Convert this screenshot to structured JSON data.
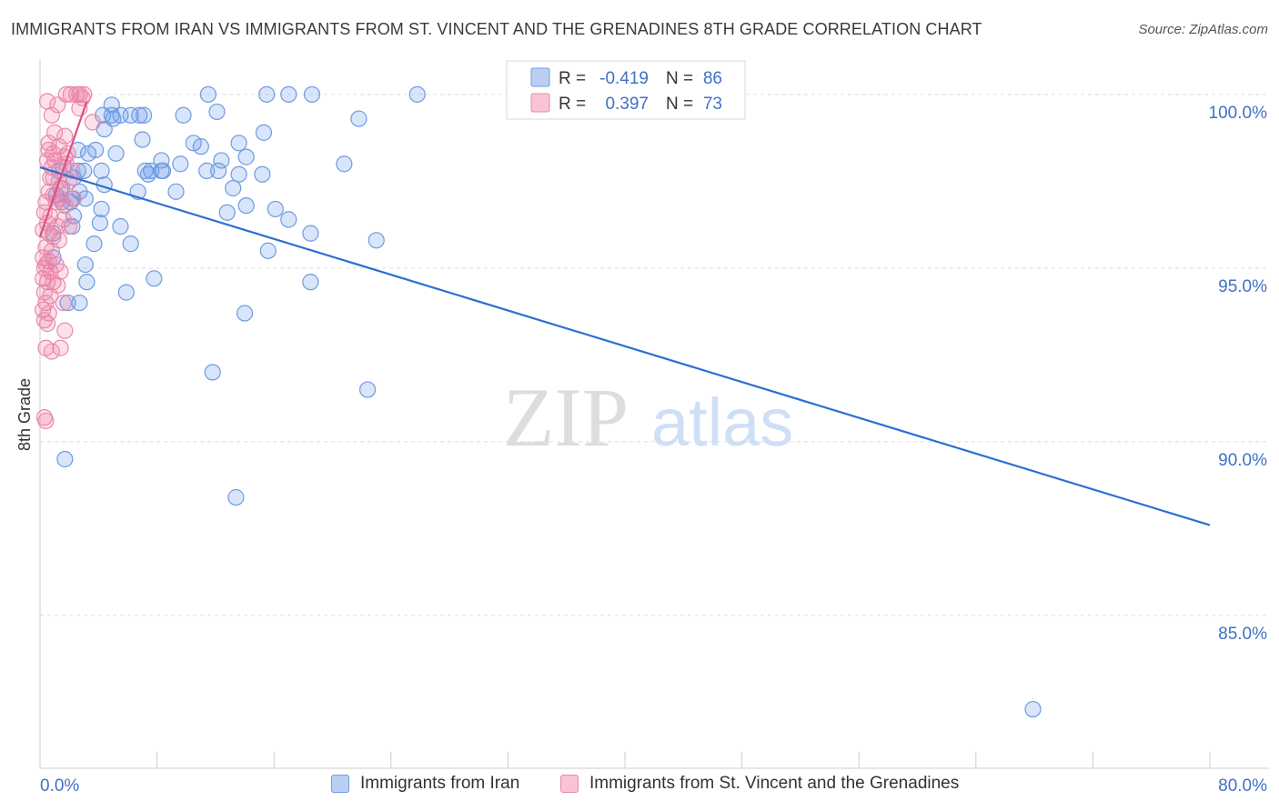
{
  "title": "IMMIGRANTS FROM IRAN VS IMMIGRANTS FROM ST. VINCENT AND THE GRENADINES 8TH GRADE CORRELATION CHART",
  "source": "Source: ZipAtlas.com",
  "watermark": {
    "zip": "ZIP",
    "atlas": "atlas"
  },
  "colors": {
    "iran_fill": "rgba(100,150,235,0.25)",
    "iran_stroke": "#6f9be0",
    "iran_line": "#2d6fcf",
    "svg_fill": "rgba(240,120,160,0.22)",
    "svg_stroke": "#e88aaa",
    "svg_line": "#e0507e",
    "axis_label": "#3f72c6",
    "grid": "#dcdcdc"
  },
  "legend": {
    "r_label": "R =",
    "n_label": "N =",
    "iran_r": "-0.419",
    "iran_n": "86",
    "svg_r": "0.397",
    "svg_n": "73"
  },
  "chart_data": {
    "type": "scatter",
    "title": "IMMIGRANTS FROM IRAN VS IMMIGRANTS FROM ST. VINCENT AND THE GRENADINES 8TH GRADE CORRELATION CHART",
    "ylabel": "8th Grade",
    "xlabel": "",
    "xlim": [
      0,
      80
    ],
    "ylim": [
      80.6,
      101.2
    ],
    "x_tick_labels": [
      {
        "value": 0,
        "label": "0.0%"
      },
      {
        "value": 80,
        "label": "80.0%"
      }
    ],
    "y_tick_labels": [
      {
        "value": 100,
        "label": "100.0%"
      },
      {
        "value": 95,
        "label": "95.0%"
      },
      {
        "value": 90,
        "label": "90.0%"
      },
      {
        "value": 85,
        "label": "85.0%"
      }
    ],
    "series": [
      {
        "name": "Immigrants from Iran",
        "trendline": [
          [
            0,
            97.9
          ],
          [
            80,
            87.6
          ]
        ],
        "points": [
          [
            11.5,
            100
          ],
          [
            15.5,
            100
          ],
          [
            17,
            100
          ],
          [
            18.6,
            100
          ],
          [
            25.8,
            100
          ],
          [
            4.9,
            99.7
          ],
          [
            12.1,
            99.5
          ],
          [
            4.3,
            99.4
          ],
          [
            4.9,
            99.4
          ],
          [
            5.0,
            99.3
          ],
          [
            5.5,
            99.4
          ],
          [
            6.8,
            99.4
          ],
          [
            7.1,
            99.4
          ],
          [
            9.8,
            99.4
          ],
          [
            21.8,
            99.3
          ],
          [
            4.4,
            99.0
          ],
          [
            15.3,
            98.9
          ],
          [
            7.0,
            98.7
          ],
          [
            10.5,
            98.6
          ],
          [
            11.0,
            98.5
          ],
          [
            13.6,
            98.6
          ],
          [
            2.6,
            98.4
          ],
          [
            3.8,
            98.4
          ],
          [
            5.2,
            98.3
          ],
          [
            3.3,
            98.3
          ],
          [
            14.1,
            98.2
          ],
          [
            12.4,
            98.1
          ],
          [
            8.3,
            98.1
          ],
          [
            20.8,
            98.0
          ],
          [
            1.6,
            97.9
          ],
          [
            1.3,
            97.8
          ],
          [
            2.6,
            97.8
          ],
          [
            3.0,
            97.8
          ],
          [
            4.2,
            97.8
          ],
          [
            7.2,
            97.8
          ],
          [
            7.6,
            97.8
          ],
          [
            8.4,
            97.8
          ],
          [
            11.4,
            97.8
          ],
          [
            12.2,
            97.8
          ],
          [
            13.6,
            97.7
          ],
          [
            15.2,
            97.7
          ],
          [
            2.3,
            97.6
          ],
          [
            7.4,
            97.7
          ],
          [
            8.3,
            97.8
          ],
          [
            4.4,
            97.4
          ],
          [
            1.4,
            97.3
          ],
          [
            2.7,
            97.2
          ],
          [
            6.7,
            97.2
          ],
          [
            9.3,
            97.2
          ],
          [
            13.2,
            97.3
          ],
          [
            1.1,
            97.1
          ],
          [
            2.2,
            97.0
          ],
          [
            3.1,
            97.0
          ],
          [
            1.5,
            96.9
          ],
          [
            2.1,
            96.9
          ],
          [
            4.2,
            96.7
          ],
          [
            14.1,
            96.8
          ],
          [
            16.1,
            96.7
          ],
          [
            12.8,
            96.6
          ],
          [
            2.3,
            96.5
          ],
          [
            17.0,
            96.4
          ],
          [
            4.1,
            96.3
          ],
          [
            2.2,
            96.2
          ],
          [
            5.5,
            96.2
          ],
          [
            18.5,
            96.0
          ],
          [
            0.9,
            96.0
          ],
          [
            23.0,
            95.8
          ],
          [
            3.7,
            95.7
          ],
          [
            6.2,
            95.7
          ],
          [
            15.6,
            95.5
          ],
          [
            3.1,
            95.1
          ],
          [
            0.9,
            95.3
          ],
          [
            7.8,
            94.7
          ],
          [
            18.5,
            94.6
          ],
          [
            3.2,
            94.6
          ],
          [
            5.9,
            94.3
          ],
          [
            2.7,
            94.0
          ],
          [
            1.9,
            94.0
          ],
          [
            14.0,
            93.7
          ],
          [
            11.8,
            92.0
          ],
          [
            22.4,
            91.5
          ],
          [
            1.7,
            89.5
          ],
          [
            13.4,
            88.4
          ],
          [
            67.9,
            82.3
          ],
          [
            6.2,
            99.4
          ],
          [
            9.6,
            98.0
          ]
        ]
      },
      {
        "name": "Immigrants from St. Vincent and the Grenadines",
        "trendline": [
          [
            0,
            95.9
          ],
          [
            3.2,
            99.8
          ]
        ],
        "points": [
          [
            1.8,
            100
          ],
          [
            2.1,
            100
          ],
          [
            2.5,
            100
          ],
          [
            2.7,
            100
          ],
          [
            3.0,
            100
          ],
          [
            2.9,
            99.9
          ],
          [
            0.5,
            99.8
          ],
          [
            1.2,
            99.7
          ],
          [
            2.7,
            99.6
          ],
          [
            0.8,
            99.4
          ],
          [
            3.6,
            99.2
          ],
          [
            1.0,
            98.9
          ],
          [
            1.7,
            98.8
          ],
          [
            0.6,
            98.6
          ],
          [
            1.3,
            98.5
          ],
          [
            0.9,
            98.3
          ],
          [
            1.9,
            98.3
          ],
          [
            0.5,
            98.1
          ],
          [
            1.0,
            98.1
          ],
          [
            1.7,
            98.2
          ],
          [
            0.8,
            97.9
          ],
          [
            2.2,
            97.8
          ],
          [
            0.7,
            97.6
          ],
          [
            1.3,
            97.5
          ],
          [
            2.0,
            97.5
          ],
          [
            0.6,
            97.2
          ],
          [
            0.9,
            97.1
          ],
          [
            1.4,
            97.0
          ],
          [
            2.3,
            97.0
          ],
          [
            0.4,
            96.9
          ],
          [
            1.1,
            96.9
          ],
          [
            1.7,
            96.8
          ],
          [
            0.3,
            96.6
          ],
          [
            0.7,
            96.5
          ],
          [
            1.6,
            96.4
          ],
          [
            0.5,
            96.3
          ],
          [
            2.0,
            96.2
          ],
          [
            0.6,
            96.0
          ],
          [
            0.9,
            95.9
          ],
          [
            1.3,
            95.8
          ],
          [
            0.4,
            95.6
          ],
          [
            0.8,
            95.5
          ],
          [
            0.2,
            95.3
          ],
          [
            0.6,
            95.2
          ],
          [
            1.1,
            95.1
          ],
          [
            0.3,
            95.0
          ],
          [
            0.7,
            94.9
          ],
          [
            1.4,
            94.9
          ],
          [
            0.2,
            94.7
          ],
          [
            0.5,
            94.6
          ],
          [
            0.9,
            94.6
          ],
          [
            1.2,
            94.5
          ],
          [
            0.3,
            94.3
          ],
          [
            0.7,
            94.2
          ],
          [
            0.4,
            94.0
          ],
          [
            1.6,
            94.0
          ],
          [
            0.2,
            93.8
          ],
          [
            0.6,
            93.7
          ],
          [
            0.3,
            93.5
          ],
          [
            0.5,
            93.4
          ],
          [
            1.7,
            93.2
          ],
          [
            0.4,
            92.7
          ],
          [
            1.4,
            92.7
          ],
          [
            0.8,
            92.6
          ],
          [
            0.3,
            90.7
          ],
          [
            0.4,
            90.6
          ],
          [
            0.6,
            98.4
          ],
          [
            1.5,
            97.3
          ],
          [
            0.2,
            96.1
          ],
          [
            1.8,
            98.0
          ],
          [
            0.4,
            95.1
          ],
          [
            0.9,
            97.6
          ],
          [
            1.2,
            96.2
          ]
        ]
      }
    ],
    "legend_entries": [
      "Immigrants from Iran",
      "Immigrants from St. Vincent and the Grenadines"
    ]
  }
}
